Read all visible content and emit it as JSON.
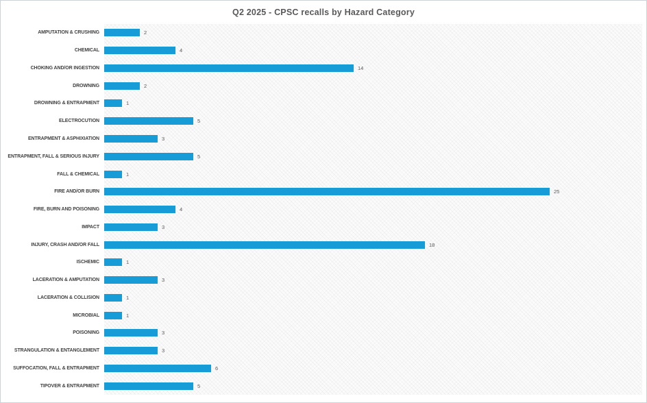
{
  "chart_data": {
    "type": "bar",
    "orientation": "horizontal",
    "title": "Q2 2025 - CPSC recalls by Hazard Category",
    "categories": [
      "AMPUTATION & CRUSHING",
      "CHEMICAL",
      "CHOKING AND/OR INGESTION",
      "DROWNING",
      "DROWNING & ENTRAPMENT",
      "ELECTROCUTION",
      "ENTRAPMENT & ASPHIXIATION",
      "ENTRAPMENT, FALL & SERIOUS INJURY",
      "FALL & CHEMICAL",
      "FIRE AND/OR BURN",
      "FIRE, BURN AND POISONING",
      "IMPACT",
      "INJURY, CRASH AND/OR FALL",
      "ISCHEMIC",
      "LACERATION & AMPUTATION",
      "LACERATION & COLLISION",
      "MICROBIAL",
      "POISONING",
      "STRANGULATION & ENTANGLEMENT",
      "SUFFOCATION, FALL & ENTRAPMENT",
      "TIPOVER & ENTRAPMENT"
    ],
    "values": [
      2,
      4,
      14,
      2,
      1,
      5,
      3,
      5,
      1,
      25,
      4,
      3,
      18,
      1,
      3,
      1,
      1,
      3,
      3,
      6,
      5
    ],
    "data_labels_shown": true,
    "xlim": [
      0,
      30
    ],
    "xlabel": "",
    "ylabel": "",
    "legend": "none",
    "grid": "off",
    "bar_color": "#189CD8",
    "title_color": "#595959",
    "category_label_color": "#3f3f3f",
    "value_label_color": "#595959",
    "plot_background": "light-diagonal-hatch"
  }
}
